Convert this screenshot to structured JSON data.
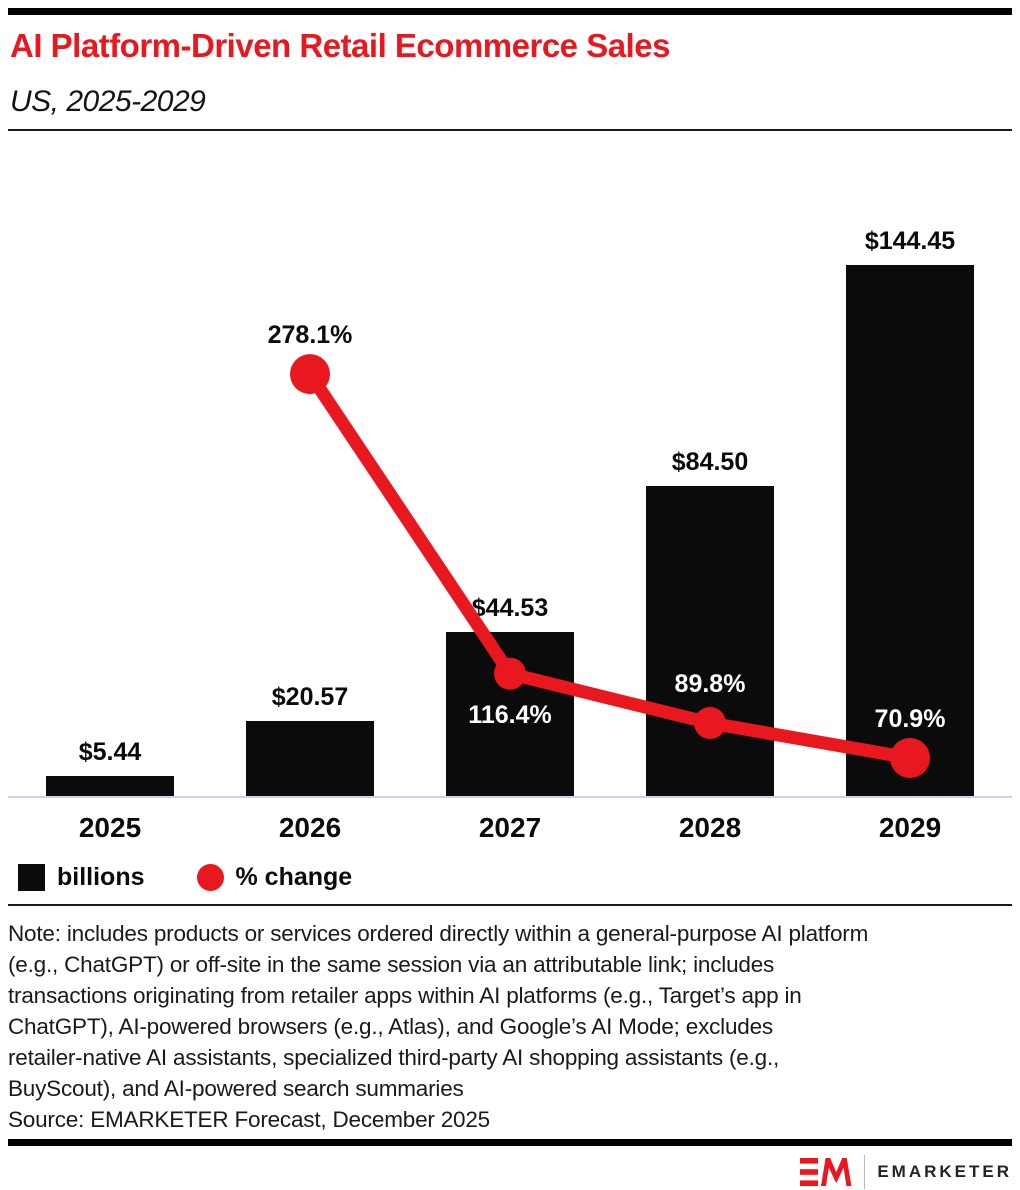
{
  "header": {
    "title": "AI Platform-Driven Retail Ecommerce Sales",
    "subtitle": "US, 2025-2029"
  },
  "chart_data": {
    "type": "bar+line combo",
    "title": "AI Platform-Driven Retail Ecommerce Sales",
    "subtitle": "US, 2025-2029",
    "categories": [
      "2025",
      "2026",
      "2027",
      "2028",
      "2029"
    ],
    "series": [
      {
        "name": "billions",
        "type": "bar",
        "color": "#0b0b0b",
        "values": [
          5.44,
          20.57,
          44.53,
          84.5,
          144.45
        ],
        "labels": [
          "$5.44",
          "$20.57",
          "$44.53",
          "$84.50",
          "$144.45"
        ]
      },
      {
        "name": "% change",
        "type": "line",
        "color": "#e8181e",
        "values": [
          null,
          278.1,
          116.4,
          89.8,
          70.9
        ],
        "labels": [
          null,
          "278.1%",
          "116.4%",
          "89.8%",
          "70.9%"
        ],
        "label_positions": [
          null,
          "above",
          "below",
          "above",
          "above"
        ],
        "label_colors": [
          null,
          "#0b0b0b",
          "#ffffff",
          "#ffffff",
          "#ffffff"
        ]
      }
    ],
    "xlabel": "",
    "ylabel": "",
    "grid": false,
    "legend_position": "bottom",
    "axis_line_color": "#ccd3e4"
  },
  "note": "Note: includes products or services ordered directly within a general-purpose AI platform\n(e.g., ChatGPT) or off-site in the same session via an attributable link; includes\ntransactions originating from retailer apps within AI platforms (e.g., Target’s app in\nChatGPT), AI-powered browsers (e.g., Atlas), and Google’s AI Mode; excludes\nretailer-native AI assistants, specialized third-party AI shopping assistants (e.g.,\nBuyScout), and AI-powered search summaries",
  "source": "Source: EMARKETER Forecast, December 2025",
  "footer": {
    "brand": "EMARKETER"
  }
}
